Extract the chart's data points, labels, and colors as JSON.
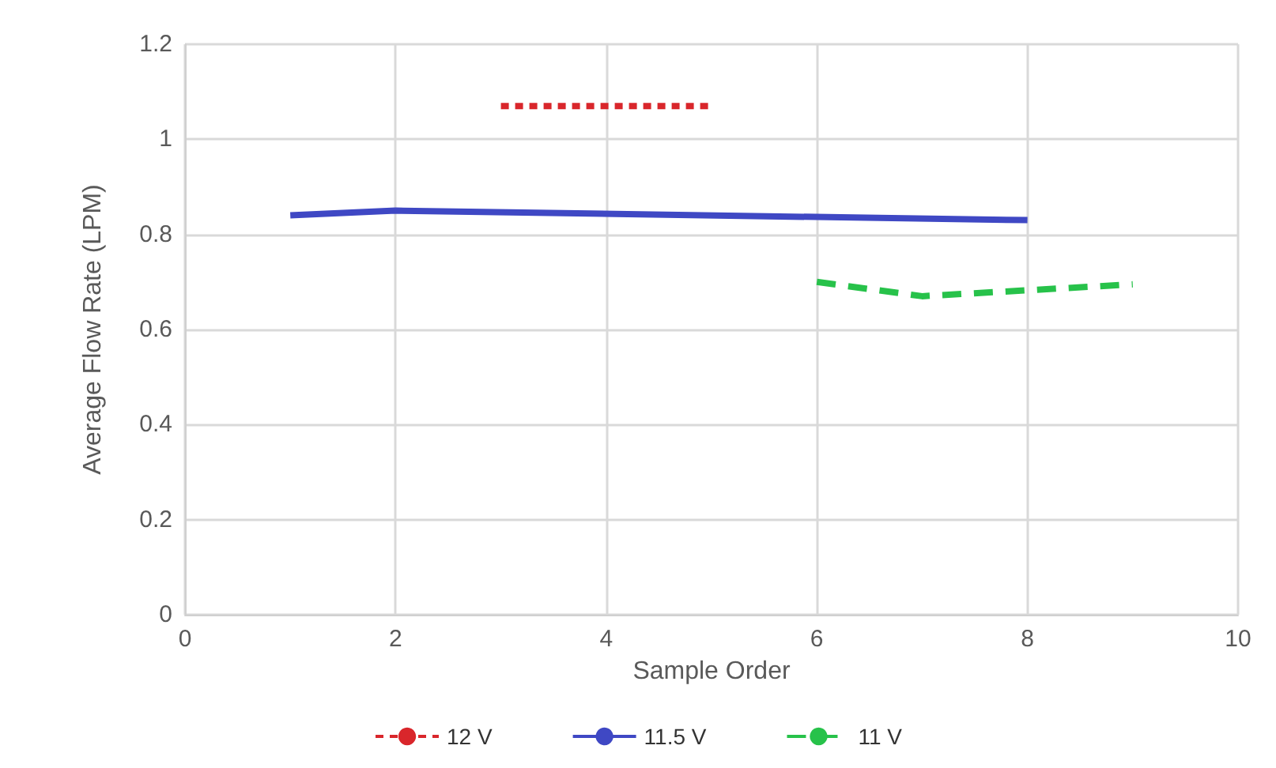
{
  "chart_data": {
    "type": "line",
    "xlabel": "Sample Order",
    "ylabel": "Average Flow Rate (LPM)",
    "xlim": [
      0,
      10
    ],
    "xticks": [
      0,
      2,
      4,
      6,
      8,
      10
    ],
    "ylim": [
      0,
      1.2
    ],
    "yticks": [
      0,
      0.2,
      0.4,
      0.6,
      0.8,
      1,
      1.2
    ],
    "grid": true,
    "legend": "bottom",
    "marker": "none",
    "series": [
      {
        "name": "12 V",
        "color": "#d9262b",
        "line_style": "dotted",
        "x": [
          3,
          5
        ],
        "values": [
          1.07,
          1.07
        ]
      },
      {
        "name": "11.5 V",
        "color": "#3f48c4",
        "line_style": "solid",
        "x": [
          1,
          2,
          8
        ],
        "values": [
          0.84,
          0.85,
          0.83
        ]
      },
      {
        "name": "11 V",
        "color": "#27c24a",
        "line_style": "dashed",
        "x": [
          6,
          7,
          9
        ],
        "values": [
          0.7,
          0.67,
          0.695
        ]
      }
    ]
  }
}
